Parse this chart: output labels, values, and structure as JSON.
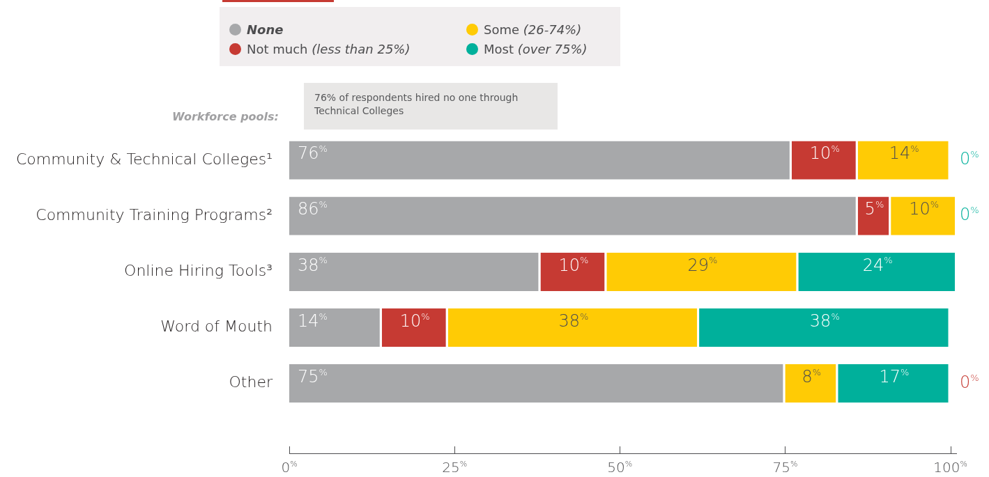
{
  "chart_data": {
    "type": "bar",
    "orientation": "horizontal",
    "stacked": true,
    "categories": [
      "Community & Technical Colleges¹",
      "Community Training Programs²",
      "Online Hiring Tools³",
      "Word of Mouth",
      "Other"
    ],
    "series": [
      {
        "name": "None",
        "color": "#a7a8aa",
        "values": [
          76,
          86,
          38,
          14,
          75
        ],
        "value_labels": [
          "76%",
          "86%",
          "38%",
          "14%",
          "75%"
        ]
      },
      {
        "name": "Not much (less than 25%)",
        "color": "#c63a33",
        "values": [
          10,
          5,
          10,
          10,
          0
        ],
        "value_labels": [
          "10%",
          "5%",
          "10%",
          "10%",
          "0%"
        ]
      },
      {
        "name": "Some (26-74%)",
        "color": "#ffcb05",
        "values": [
          14,
          10,
          29,
          38,
          8
        ],
        "value_labels": [
          "14%",
          "10%",
          "29%",
          "38%",
          "8%"
        ]
      },
      {
        "name": "Most (over 75%)",
        "color": "#00b09b",
        "values": [
          0,
          0,
          24,
          38,
          17
        ],
        "value_labels": [
          "0%",
          "0%",
          "24%",
          "38%",
          "17%"
        ]
      }
    ],
    "xlim": [
      0,
      101
    ],
    "xticks": [
      {
        "value": 0,
        "label": "0%"
      },
      {
        "value": 25,
        "label": "25%"
      },
      {
        "value": 50,
        "label": "50%"
      },
      {
        "value": 75,
        "label": "75%"
      },
      {
        "value": 100,
        "label": "100%"
      }
    ],
    "grid": false,
    "legend": "top",
    "annotations": [
      "Workforce pools:",
      "76% of respondents hired no one through Technical Colleges"
    ]
  }
}
